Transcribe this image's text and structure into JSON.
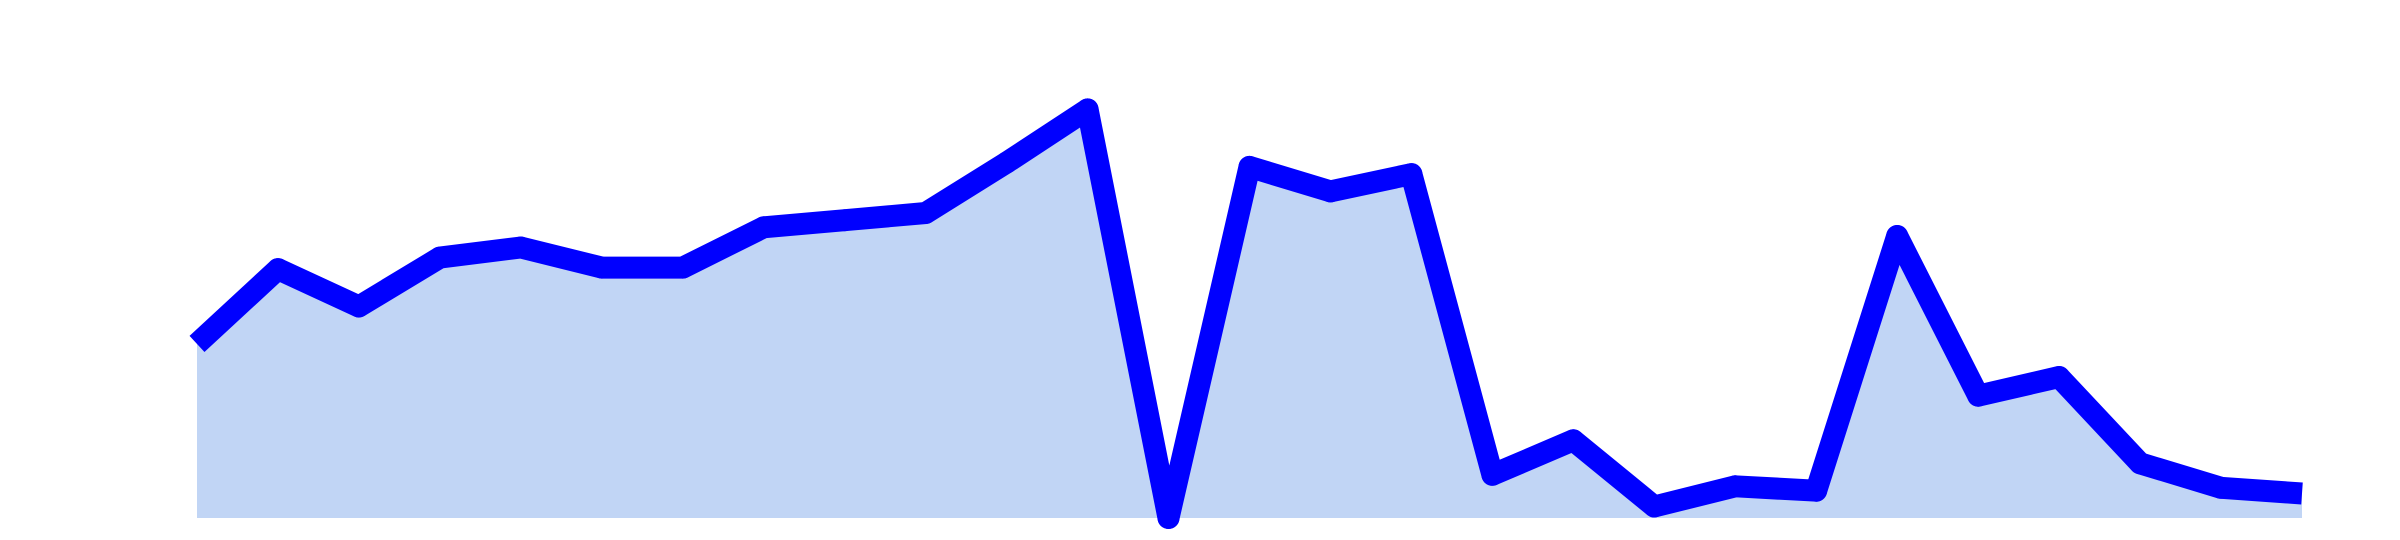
{
  "chart_data": {
    "type": "area",
    "title": "",
    "xlabel": "",
    "ylabel": "",
    "x": [
      1,
      2,
      3,
      4,
      5,
      6,
      7,
      8,
      9,
      10,
      11,
      12,
      13,
      14,
      15,
      16,
      17,
      18,
      19,
      20,
      21,
      22,
      23,
      24,
      25,
      26,
      27
    ],
    "series": [
      {
        "values": [
          1.21,
          1.73,
          1.47,
          1.81,
          1.88,
          1.74,
          1.74,
          2.02,
          2.07,
          2.12,
          2.47,
          2.84,
          0,
          2.44,
          2.27,
          2.39,
          0.3,
          0.54,
          0.08,
          0.22,
          0.19,
          1.96,
          0.85,
          0.98,
          0.38,
          0.21,
          0.17
        ]
      }
    ],
    "ylim": [
      0,
      3.6
    ],
    "grid": false,
    "legend": "none",
    "colors": {
      "line": "#0000ff",
      "fill": "#c1d5f5"
    }
  }
}
